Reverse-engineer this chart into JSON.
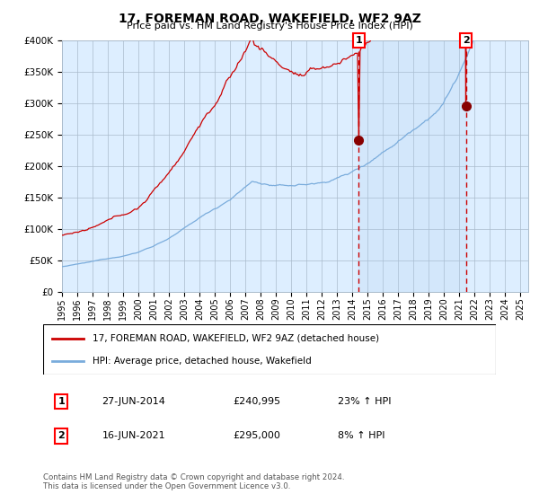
{
  "title": "17, FOREMAN ROAD, WAKEFIELD, WF2 9AZ",
  "subtitle": "Price paid vs. HM Land Registry's House Price Index (HPI)",
  "red_label": "17, FOREMAN ROAD, WAKEFIELD, WF2 9AZ (detached house)",
  "blue_label": "HPI: Average price, detached house, Wakefield",
  "footnote": "Contains HM Land Registry data © Crown copyright and database right 2024.\nThis data is licensed under the Open Government Licence v3.0.",
  "annotation1_date": "27-JUN-2014",
  "annotation1_price": "£240,995",
  "annotation1_hpi": "23% ↑ HPI",
  "annotation2_date": "16-JUN-2021",
  "annotation2_price": "£295,000",
  "annotation2_hpi": "8% ↑ HPI",
  "ylim": [
    0,
    400000
  ],
  "start_year": 1995,
  "end_year": 2025,
  "red_color": "#cc0000",
  "blue_color": "#7aacdc",
  "bg_color": "#ddeeff",
  "grid_color": "#aabbcc",
  "vline_color": "#cc0000",
  "dot_color": "#880000",
  "fig_bg": "#f0f0f0"
}
